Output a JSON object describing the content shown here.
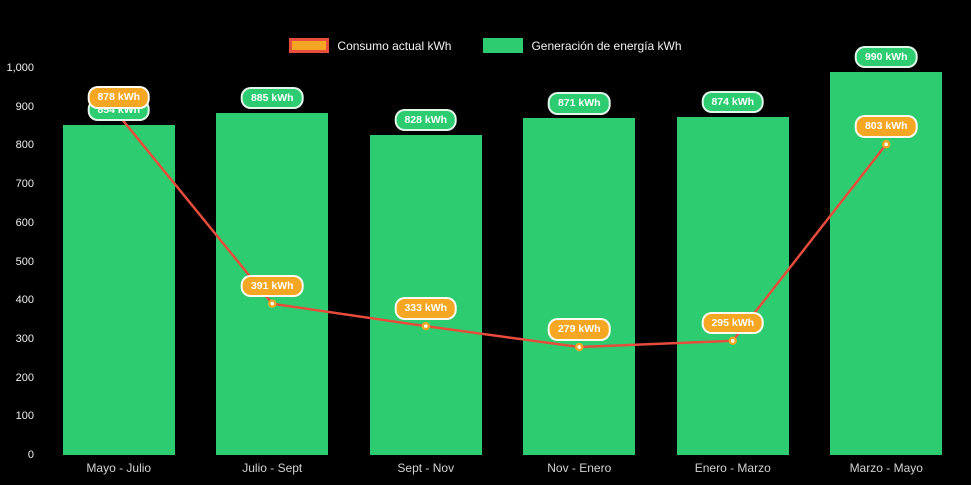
{
  "chart_data": {
    "type": "bar",
    "subtype": "bar-with-line-overlay",
    "categories": [
      "Mayo - Julio",
      "Julio - Sept",
      "Sept - Nov",
      "Nov - Enero",
      "Enero - Marzo",
      "Marzo - Mayo"
    ],
    "series": [
      {
        "name": "Consumo actual kWh",
        "type": "line",
        "color": "#e74c3c",
        "point_color": "#f5a623",
        "values": [
          878,
          391,
          333,
          279,
          295,
          803
        ],
        "labels": [
          "878 kWh",
          "391 kWh",
          "333 kWh",
          "279 kWh",
          "295 kWh",
          "803 kWh"
        ]
      },
      {
        "name": "Generación de energía kWh",
        "type": "bar",
        "color": "#2ecc71",
        "values": [
          854,
          885,
          828,
          871,
          874,
          990
        ],
        "labels": [
          "854 kWh",
          "885 kWh",
          "828 kWh",
          "871 kWh",
          "874 kWh",
          "990 kWh"
        ]
      }
    ],
    "ylim": [
      0,
      1000
    ],
    "yticks": [
      0,
      100,
      200,
      300,
      400,
      500,
      600,
      700,
      800,
      900,
      1000
    ],
    "ytick_labels": [
      "0",
      "100",
      "200",
      "300",
      "400",
      "500",
      "600",
      "700",
      "800",
      "900",
      "1,000"
    ],
    "grid": false,
    "legend_position": "top",
    "title": "",
    "xlabel": "",
    "ylabel": ""
  },
  "colors": {
    "background": "#000000",
    "bar": "#2ecc71",
    "line": "#e74c3c",
    "point_fill": "#ffffff",
    "point_ring": "#f5a623",
    "badge_green": "#2ecc71",
    "badge_orange": "#f5a623",
    "axis_text": "#efefef",
    "category_text": "#d2d2d2",
    "legend_text": "#f2f2f2",
    "consumo_swatch_fill": "#f5a623",
    "consumo_swatch_border": "#e74c3c"
  }
}
